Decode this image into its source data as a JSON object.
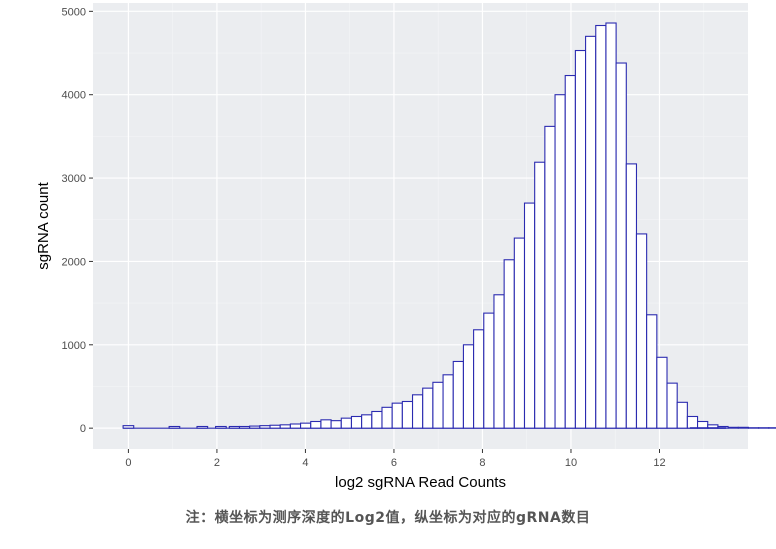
{
  "chart_data": {
    "type": "histogram",
    "xlabel": "log2 sgRNA Read Counts",
    "ylabel": "sgRNA count",
    "xlim": [
      -0.8,
      14.0
    ],
    "ylim": [
      -250,
      5100
    ],
    "x_ticks": [
      0,
      2,
      4,
      6,
      8,
      10,
      12
    ],
    "y_ticks": [
      0,
      1000,
      2000,
      3000,
      4000,
      5000
    ],
    "bin_width": 0.23,
    "bin_start": 2.28,
    "counts": [
      20,
      20,
      25,
      30,
      35,
      40,
      50,
      60,
      80,
      100,
      90,
      120,
      140,
      160,
      200,
      250,
      300,
      320,
      400,
      480,
      550,
      640,
      800,
      1000,
      1180,
      1380,
      1600,
      2020,
      2280,
      2700,
      3190,
      3620,
      4000,
      4230,
      4530,
      4700,
      4830,
      4860,
      4380,
      3170,
      2330,
      1360,
      850,
      540,
      310,
      140,
      80,
      40,
      20,
      10,
      10,
      5,
      5,
      5
    ],
    "low_bins": [
      {
        "x0": -0.12,
        "x1": 0.12,
        "count": 30
      },
      {
        "x0": 0.92,
        "x1": 1.16,
        "count": 20
      },
      {
        "x0": 1.55,
        "x1": 1.79,
        "count": 20
      },
      {
        "x0": 1.97,
        "x1": 2.21,
        "count": 20
      }
    ],
    "tail_bins": [
      {
        "x0": 12.7,
        "x1": 13.1,
        "count": 5
      },
      {
        "x0": 13.1,
        "x1": 13.5,
        "count": 5
      }
    ],
    "bar_fill": "#ffffff",
    "bar_stroke": "#2b2bb0",
    "panel_background": "#ebedf0",
    "grid": true
  },
  "caption": "注：横坐标为测序深度的Log2值，纵坐标为对应的gRNA数目"
}
